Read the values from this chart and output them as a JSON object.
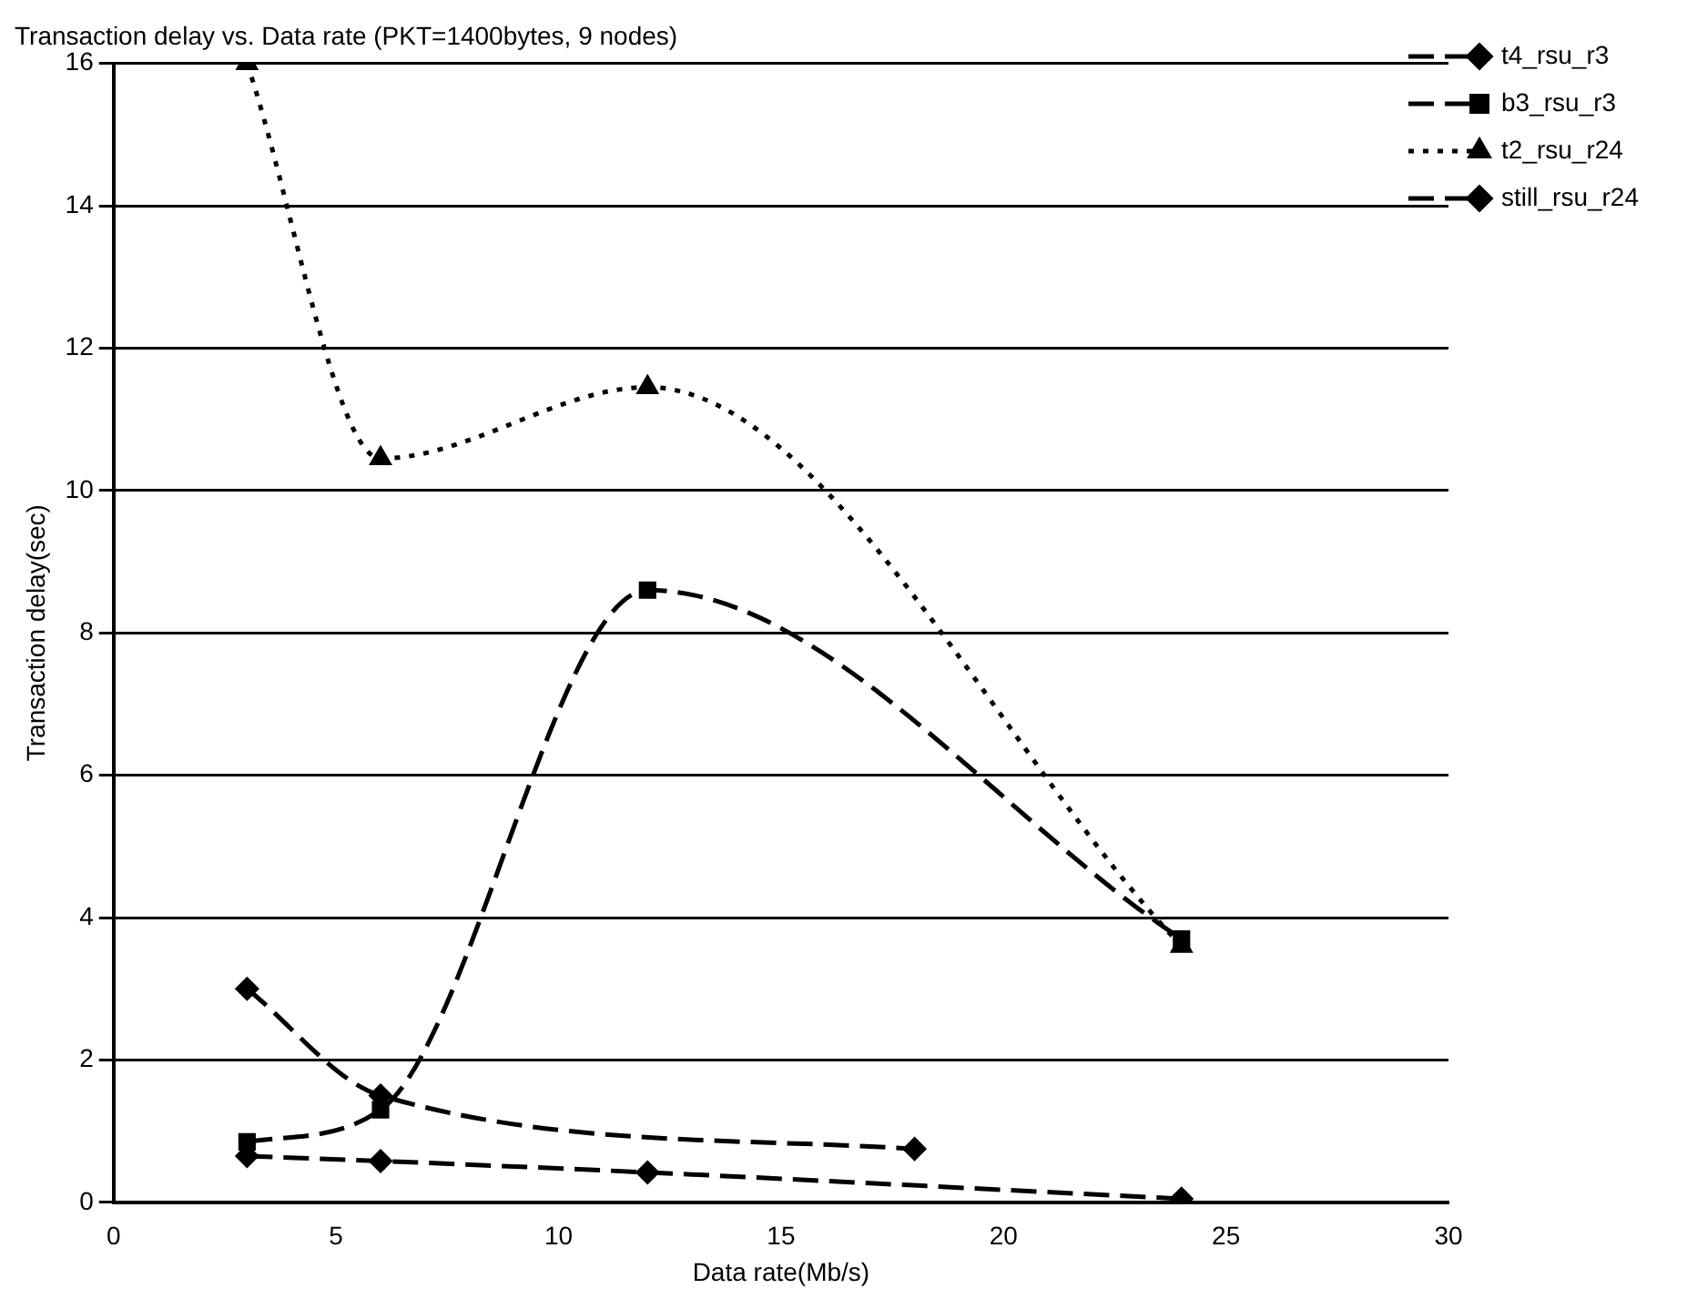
{
  "chart_data": {
    "type": "line",
    "title": "Transaction delay vs. Data rate (PKT=1400bytes, 9 nodes)",
    "xlabel": "Data rate(Mb/s)",
    "ylabel": "Transaction delay(sec)",
    "xlim": [
      0,
      30
    ],
    "xticks": [
      0,
      5,
      10,
      15,
      20,
      25,
      30
    ],
    "ylim": [
      0,
      16
    ],
    "yticks": [
      0,
      2,
      4,
      6,
      8,
      10,
      12,
      14,
      16
    ],
    "grid": "y",
    "legend": "top right",
    "series": [
      {
        "name": "t4_rsu_r3",
        "color": "#000000",
        "x": [
          3,
          6,
          12,
          24
        ],
        "values": [
          0.65,
          0.58,
          0.42,
          0.05
        ],
        "marker": "diamond",
        "line_style": "dashed"
      },
      {
        "name": "b3_rsu_r3",
        "color": "#000000",
        "x": [
          3,
          6,
          12,
          24
        ],
        "values": [
          0.85,
          1.3,
          8.6,
          3.7
        ],
        "marker": "square",
        "line_style": "dashed"
      },
      {
        "name": "t2_rsu_r24",
        "color": "#000000",
        "x": [
          3,
          6,
          12,
          24
        ],
        "values": [
          16,
          10.45,
          11.45,
          3.6
        ],
        "marker": "triangle",
        "line_style": "dotted"
      },
      {
        "name": "still_rsu_r24",
        "color": "#000000",
        "x": [
          3,
          6,
          18
        ],
        "values": [
          3.0,
          1.5,
          0.75
        ],
        "marker": "diamond",
        "line_style": "dashed"
      }
    ]
  }
}
